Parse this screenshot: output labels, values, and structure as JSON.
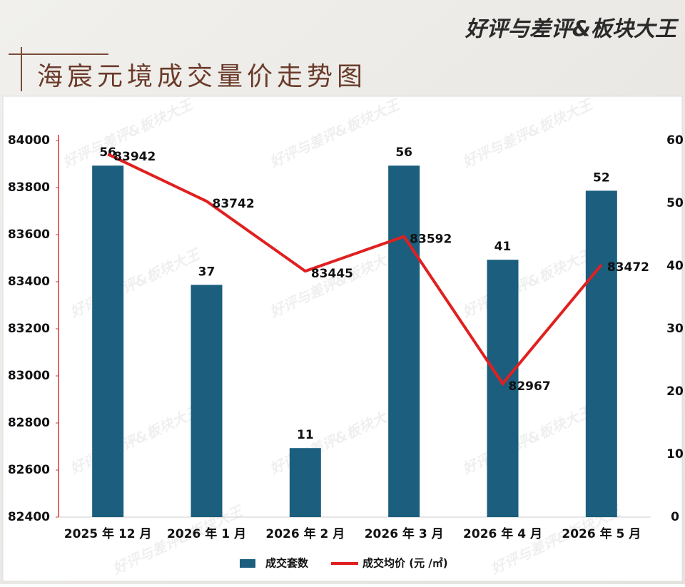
{
  "brand": "好评与差评&板块大王",
  "chart_data": {
    "type": "bar",
    "title": "海宸元境成交量价走势图",
    "categories": [
      "2025 年 12 月",
      "2026 年 1 月",
      "2026 年 2 月",
      "2026 年 3 月",
      "2026 年 4 月",
      "2026 年 5 月"
    ],
    "series": [
      {
        "name": "成交套数",
        "type": "bar",
        "axis": "y2",
        "color": "#1b5e7e",
        "values": [
          56,
          37,
          11,
          56,
          41,
          52
        ]
      },
      {
        "name": "成交均价 (元 /㎡)",
        "type": "line",
        "color": "#e02020",
        "values": [
          83942,
          83742,
          83445,
          83592,
          82967,
          83472
        ]
      }
    ],
    "ylim": [
      82400,
      84000
    ],
    "yticks": [
      82400,
      82600,
      82800,
      83000,
      83200,
      83400,
      83600,
      83800,
      84000
    ],
    "y2lim": [
      0,
      60
    ],
    "y2ticks": [
      0,
      10,
      20,
      30,
      40,
      50,
      60
    ],
    "grid": false,
    "legend": "bottom"
  }
}
